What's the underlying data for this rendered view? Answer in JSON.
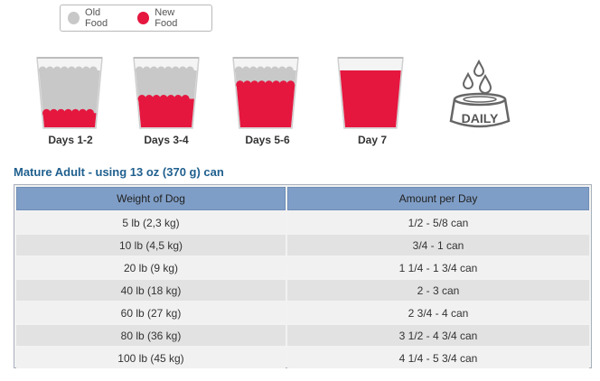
{
  "colors": {
    "old_food": "#c8c8c8",
    "new_food": "#e5173f",
    "heading": "#1f5f8e",
    "table_header": "#7f9ec7"
  },
  "legend": {
    "old_label": "Old Food",
    "new_label": "New Food"
  },
  "transition": [
    {
      "label": "Days 1-2",
      "new_food_fraction": 0.25
    },
    {
      "label": "Days 3-4",
      "new_food_fraction": 0.5
    },
    {
      "label": "Days 5-6",
      "new_food_fraction": 0.75
    },
    {
      "label": "Day 7",
      "new_food_fraction": 1.0
    }
  ],
  "daily_icon": {
    "label": "DAILY",
    "icon": "bowl-with-drops-icon"
  },
  "section": {
    "heading": "Mature Adult - using 13 oz (370 g) can"
  },
  "table": {
    "headers": [
      "Weight of Dog",
      "Amount per Day"
    ],
    "rows": [
      [
        "5 lb (2,3 kg)",
        "1/2 - 5/8 can"
      ],
      [
        "10 lb (4,5 kg)",
        "3/4 - 1 can"
      ],
      [
        "20 lb (9 kg)",
        "1 1/4 - 1 3/4 can"
      ],
      [
        "40 lb (18 kg)",
        "2 - 3 can"
      ],
      [
        "60 lb (27 kg)",
        "2 3/4 - 4 can"
      ],
      [
        "80 lb (36 kg)",
        "3 1/2 - 4 3/4 can"
      ],
      [
        "100 lb (45 kg)",
        "4 1/4 - 5 3/4 can"
      ]
    ]
  }
}
